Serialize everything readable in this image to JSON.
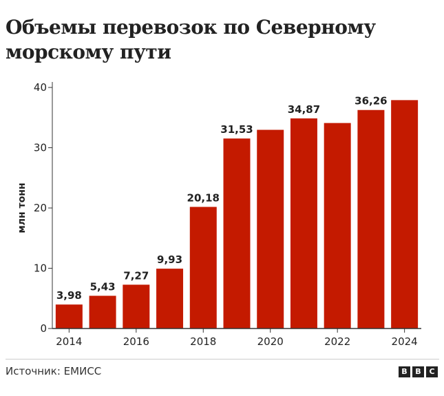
{
  "title": "Объемы перевозок по Северному морскому пути",
  "source": "Источник: ЕМИСС",
  "logo": {
    "letters": [
      "B",
      "B",
      "C"
    ]
  },
  "colors": {
    "bar": "#c41a00",
    "axis": "#333333",
    "text": "#222222"
  },
  "chart_data": {
    "type": "bar",
    "ylabel": "млн тонн",
    "xlabel": "",
    "ylim": [
      0,
      40
    ],
    "yticks": [
      0,
      10,
      20,
      30,
      40
    ],
    "xticks": [
      "2014",
      "2016",
      "2018",
      "2020",
      "2022",
      "2024"
    ],
    "categories": [
      "2014",
      "2015",
      "2016",
      "2017",
      "2018",
      "2019",
      "2020",
      "2021",
      "2022",
      "2023",
      "2024"
    ],
    "values": [
      3.98,
      5.43,
      7.27,
      9.93,
      20.18,
      31.53,
      32.97,
      34.87,
      34.1,
      36.26,
      37.9
    ],
    "data_labels": [
      "3,98",
      "5,43",
      "7,27",
      "9,93",
      "20,18",
      "31,53",
      "",
      "34,87",
      "",
      "36,26",
      ""
    ],
    "grid": false
  }
}
